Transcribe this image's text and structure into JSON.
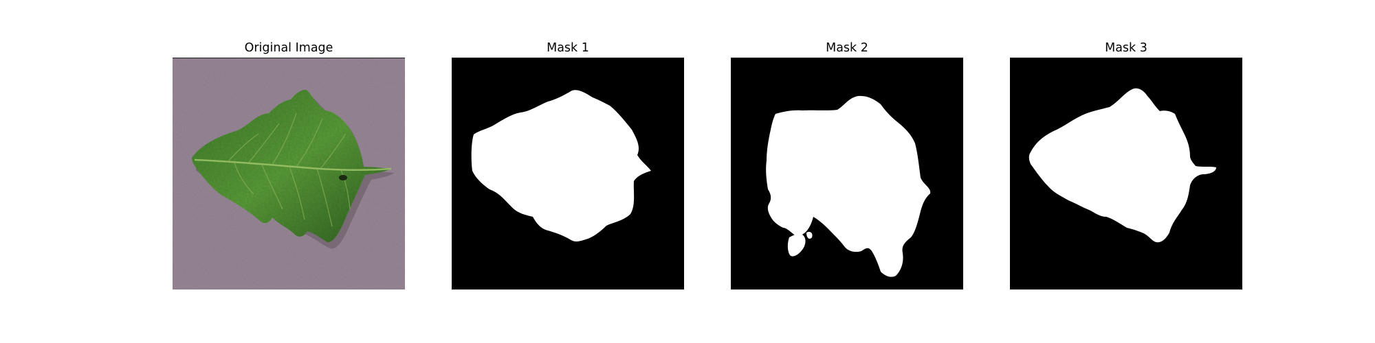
{
  "figure": {
    "panels": [
      {
        "title": "Original Image",
        "kind": "photo"
      },
      {
        "title": "Mask 1",
        "kind": "mask"
      },
      {
        "title": "Mask 2",
        "kind": "mask"
      },
      {
        "title": "Mask 3",
        "kind": "mask"
      }
    ],
    "colors": {
      "background": "#ffffff",
      "mask_background": "#000000",
      "mask_foreground": "#ffffff",
      "photo_background": "#8a7a88",
      "leaf_dark": "#2f5a22",
      "leaf_light": "#5f9a3a"
    }
  }
}
